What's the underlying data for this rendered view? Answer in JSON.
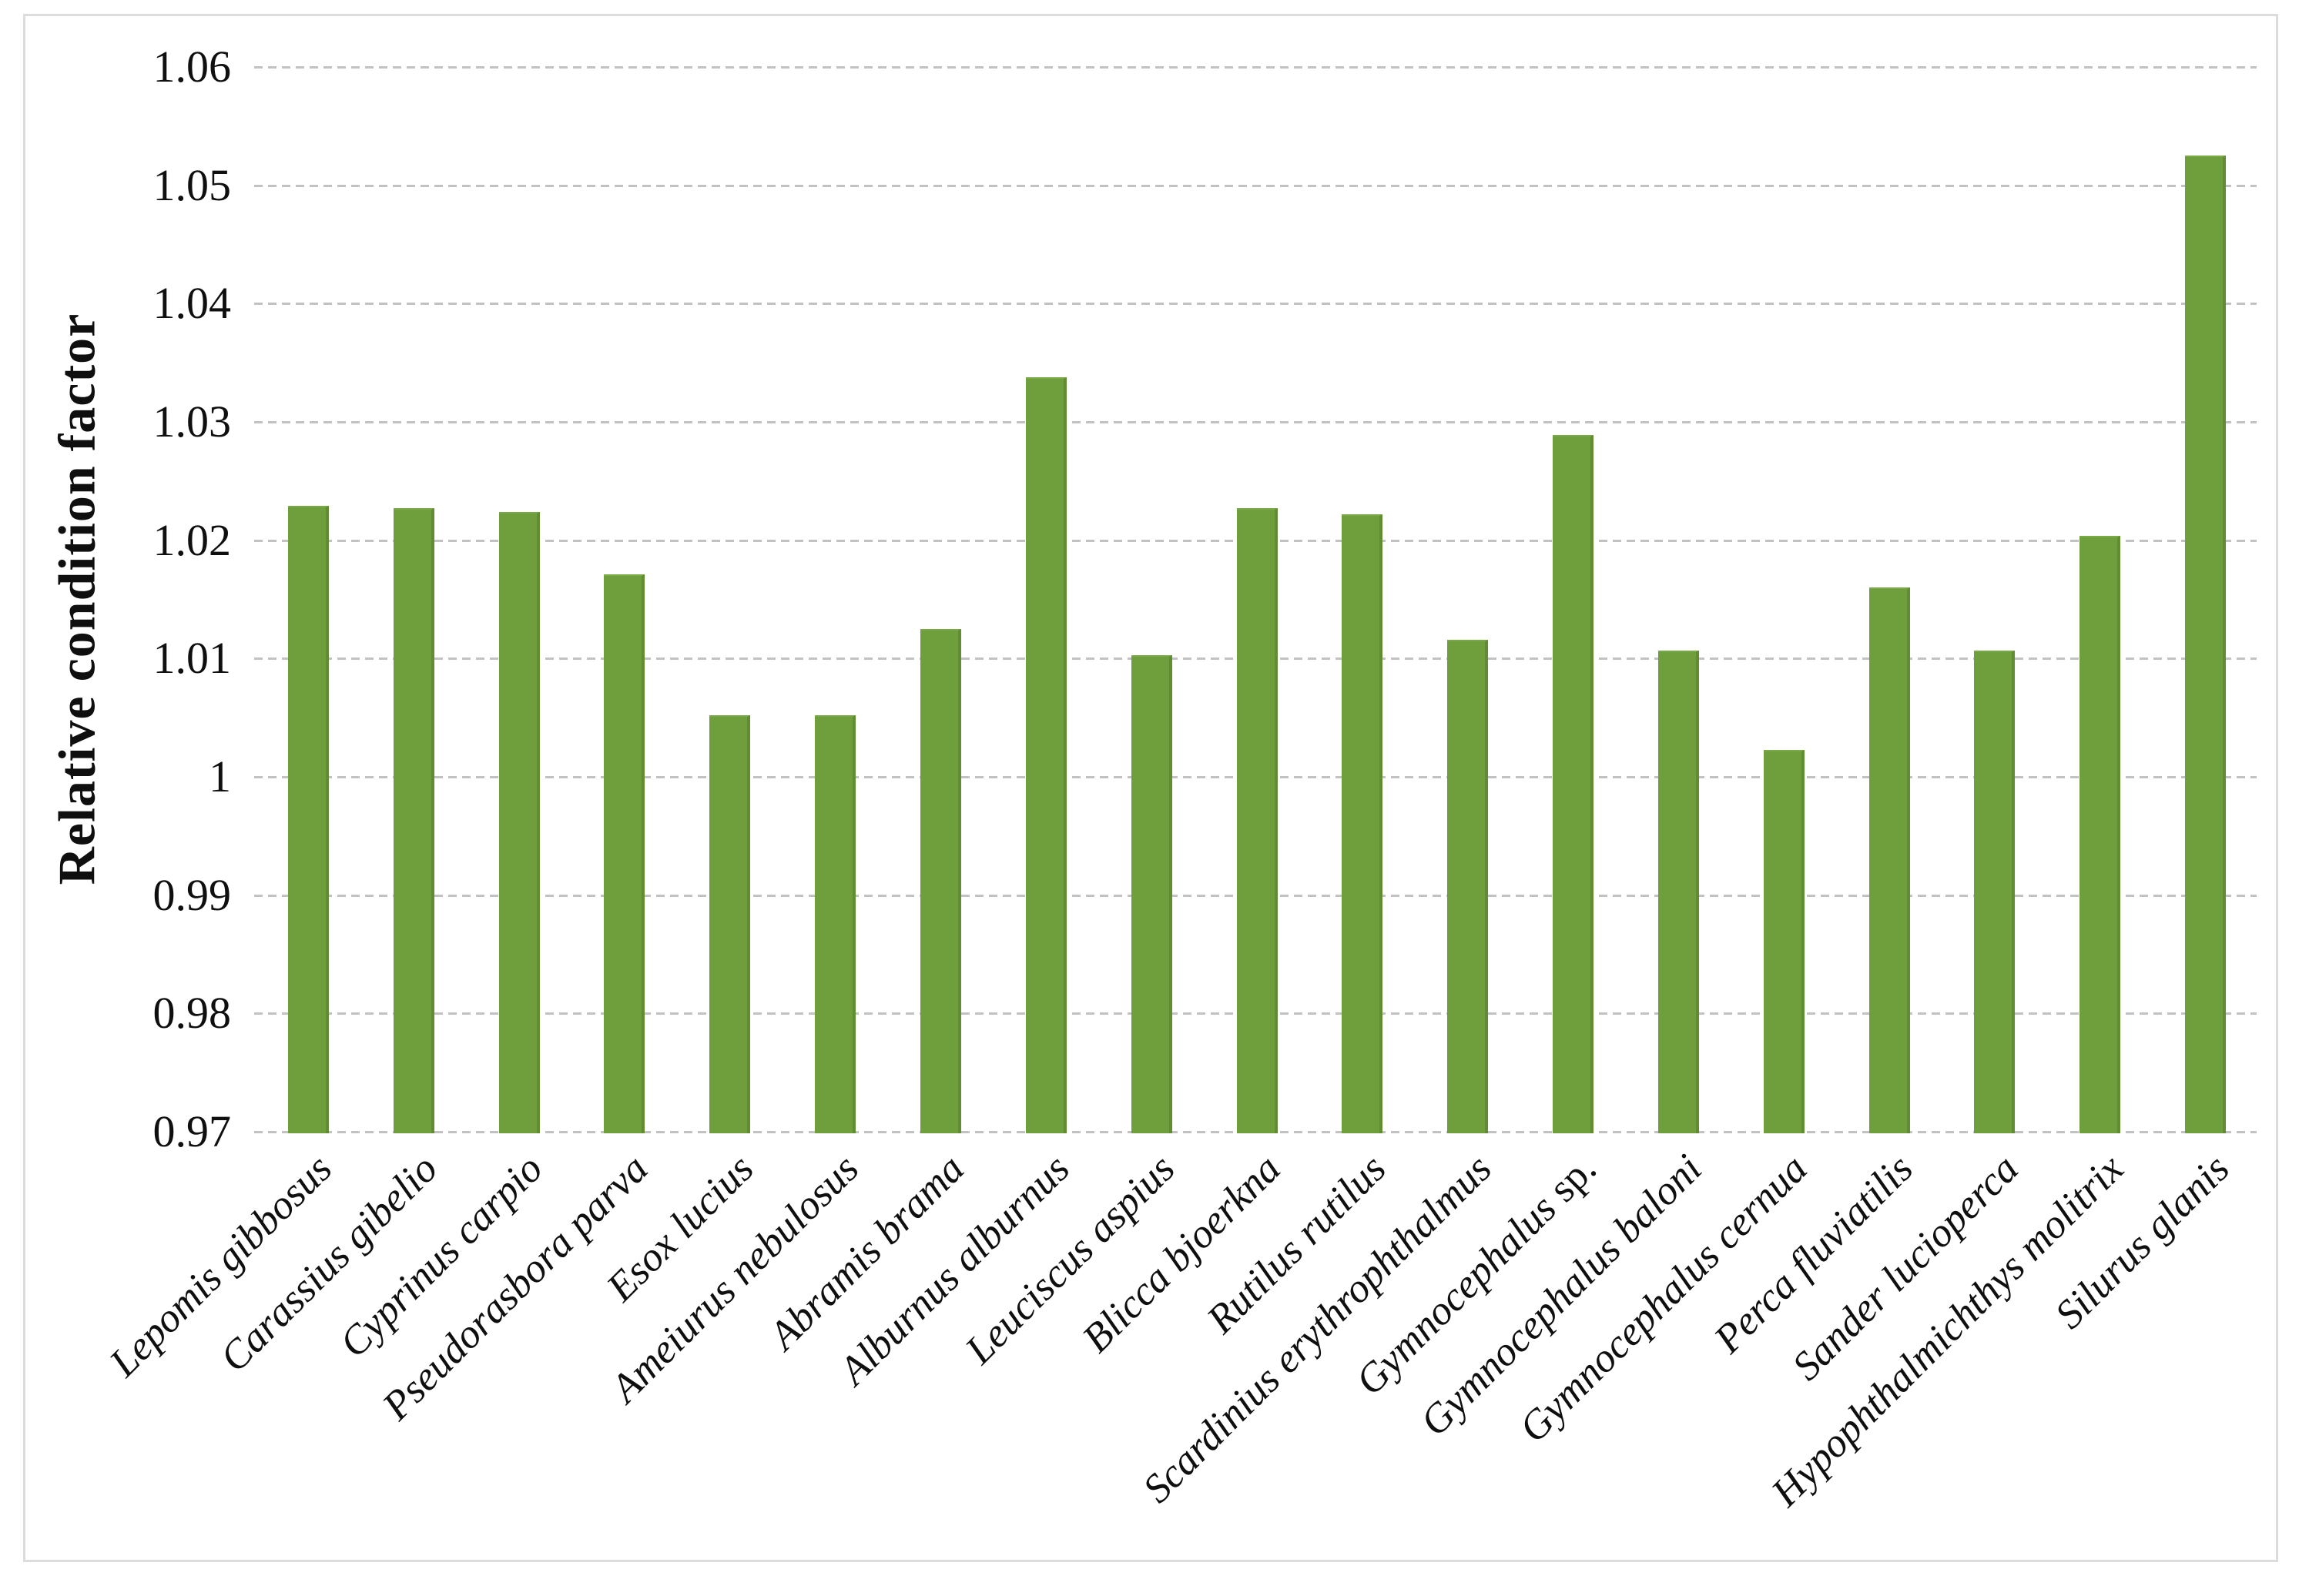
{
  "figure": {
    "background_color": "#ffffff",
    "border_color": "#dcdcdc",
    "gridline_color": "#c2c2c2",
    "text_color": "#0f0f0f"
  },
  "chart_data": {
    "type": "bar",
    "title": "",
    "xlabel": "",
    "ylabel": "Relative condition factor",
    "ylim": [
      0.97,
      1.06
    ],
    "ytick_step": 0.01,
    "yticks": [
      "1.06",
      "1.05",
      "1.04",
      "1.03",
      "1.02",
      "1.01",
      "1",
      "0.99",
      "0.98",
      "0.97"
    ],
    "grid": true,
    "legend": false,
    "bar_color": "#6f9e3c",
    "bar_edge_color": "#618c32",
    "categories": [
      {
        "label": "Lepomis gibbosus",
        "roman_part": ""
      },
      {
        "label": "Carassius gibelio",
        "roman_part": ""
      },
      {
        "label": "Cyprinus carpio",
        "roman_part": ""
      },
      {
        "label": "Pseudorasbora parva",
        "roman_part": ""
      },
      {
        "label": "Esox lucius",
        "roman_part": ""
      },
      {
        "label": "Ameiurus nebulosus",
        "roman_part": ""
      },
      {
        "label": "Abramis brama",
        "roman_part": ""
      },
      {
        "label": "Alburnus alburnus",
        "roman_part": ""
      },
      {
        "label": "Leuciscus aspius",
        "roman_part": ""
      },
      {
        "label": "Blicca bjoerkna",
        "roman_part": ""
      },
      {
        "label": "Rutilus rutilus",
        "roman_part": ""
      },
      {
        "label": "Scardinius erythrophthalmus",
        "roman_part": ""
      },
      {
        "label": "Gymnocephalus",
        "roman_part": "sp."
      },
      {
        "label": "Gymnocephalus baloni",
        "roman_part": ""
      },
      {
        "label": "Gymnocephalus cernua",
        "roman_part": ""
      },
      {
        "label": "Perca fluviatilis",
        "roman_part": ""
      },
      {
        "label": "Sander lucioperca",
        "roman_part": ""
      },
      {
        "label": "Hypophthalmichthys molitrix",
        "roman_part": ""
      },
      {
        "label": "Silurus glanis",
        "roman_part": ""
      }
    ],
    "values": [
      1.0229,
      1.0227,
      1.0224,
      1.0171,
      1.0052,
      1.0052,
      1.0125,
      1.0338,
      1.0103,
      1.0227,
      1.0222,
      1.0116,
      1.0289,
      1.0107,
      1.0023,
      1.016,
      1.0107,
      1.0204,
      1.0525
    ]
  }
}
